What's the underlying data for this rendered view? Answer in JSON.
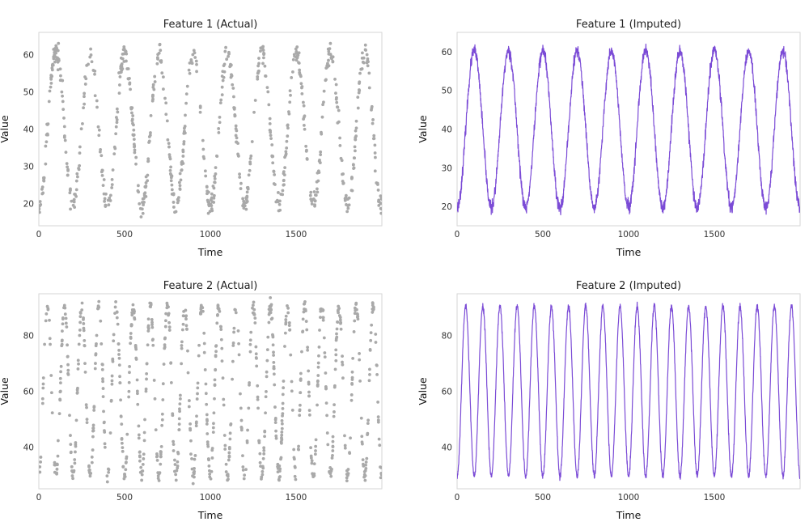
{
  "colors": {
    "actual_points": "#a9a9a9",
    "imputed_line": "#7b4bd6",
    "frame": "#d6d6d6"
  },
  "chart_data": [
    {
      "id": "feature1-actual",
      "type": "scatter",
      "title": "Feature 1 (Actual)",
      "xlabel": "Time",
      "ylabel": "Value",
      "xlim": [
        0,
        2000
      ],
      "ylim": [
        14,
        66
      ],
      "xticks": [
        0,
        500,
        1000,
        1500
      ],
      "yticks": [
        20,
        30,
        40,
        50,
        60
      ],
      "series": [
        {
          "generator": {
            "kind": "sinusoid",
            "mean": 40,
            "amplitude": 20.5,
            "period": 200,
            "phase_peak_x": 100,
            "noise": 1.5,
            "n": 750,
            "x_start": 0,
            "x_end": 1999,
            "seed": 11
          }
        }
      ],
      "grid": false,
      "legend": "none"
    },
    {
      "id": "feature1-imputed",
      "type": "line",
      "title": "Feature 1 (Imputed)",
      "xlabel": "Time",
      "ylabel": "Value",
      "xlim": [
        0,
        2000
      ],
      "ylim": [
        15,
        65
      ],
      "xticks": [
        0,
        500,
        1000,
        1500
      ],
      "yticks": [
        20,
        30,
        40,
        50,
        60
      ],
      "series": [
        {
          "generator": {
            "kind": "sinusoid",
            "mean": 40,
            "amplitude": 20.3,
            "period": 200,
            "phase_peak_x": 100,
            "noise": 0.8,
            "n": 2000,
            "x_start": 0,
            "x_end": 1999,
            "seed": 23
          }
        }
      ],
      "grid": false,
      "legend": "none"
    },
    {
      "id": "feature2-actual",
      "type": "scatter",
      "title": "Feature 2 (Actual)",
      "xlabel": "Time",
      "ylabel": "Value",
      "xlim": [
        0,
        2000
      ],
      "ylim": [
        25,
        95
      ],
      "xticks": [
        0,
        500,
        1000,
        1500
      ],
      "yticks": [
        40,
        60,
        80
      ],
      "series": [
        {
          "generator": {
            "kind": "sinusoid",
            "mean": 60,
            "amplitude": 30.5,
            "period": 100,
            "phase_peak_x": 50,
            "noise": 1.2,
            "n": 900,
            "x_start": 0,
            "x_end": 1999,
            "seed": 37
          }
        }
      ],
      "grid": false,
      "legend": "none"
    },
    {
      "id": "feature2-imputed",
      "type": "line",
      "title": "Feature 2 (Imputed)",
      "xlabel": "Time",
      "ylabel": "Value",
      "xlim": [
        0,
        2000
      ],
      "ylim": [
        25,
        95
      ],
      "xticks": [
        0,
        500,
        1000,
        1500
      ],
      "yticks": [
        40,
        60,
        80
      ],
      "series": [
        {
          "generator": {
            "kind": "sinusoid",
            "mean": 60,
            "amplitude": 30.5,
            "period": 100,
            "phase_peak_x": 50,
            "noise": 0.6,
            "n": 2000,
            "x_start": 0,
            "x_end": 1999,
            "seed": 53
          }
        }
      ],
      "grid": false,
      "legend": "none"
    }
  ]
}
